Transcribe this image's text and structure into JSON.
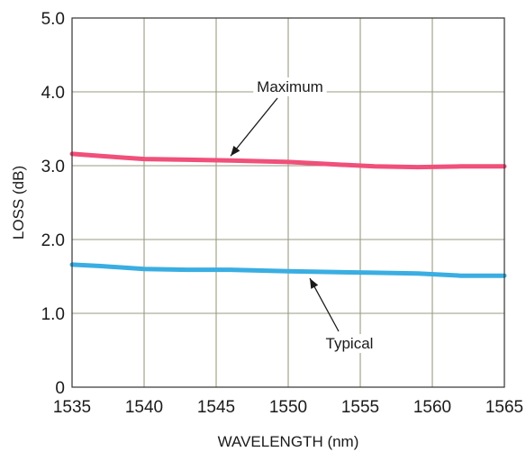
{
  "chart_data": {
    "type": "line",
    "title": "",
    "xlabel": "WAVELENGTH (nm)",
    "ylabel": "LOSS (dB)",
    "xlim": [
      1535,
      1565
    ],
    "ylim": [
      0,
      5
    ],
    "grid": true,
    "x_ticks": [
      1535,
      1540,
      1545,
      1550,
      1555,
      1560,
      1565
    ],
    "x_tick_labels": [
      "1535",
      "1540",
      "1545",
      "1550",
      "1555",
      "1560",
      "1565"
    ],
    "y_ticks": [
      0,
      1,
      2,
      3,
      4,
      5
    ],
    "y_tick_labels": [
      "0",
      "1.0",
      "2.0",
      "3.0",
      "4.0",
      "5.0"
    ],
    "series": [
      {
        "name": "Maximum",
        "color": "#f0507a",
        "x": [
          1535,
          1537,
          1540,
          1543,
          1546,
          1550,
          1553,
          1556,
          1559,
          1562,
          1565
        ],
        "values": [
          3.16,
          3.13,
          3.09,
          3.08,
          3.07,
          3.05,
          3.02,
          2.99,
          2.98,
          2.99,
          2.99
        ]
      },
      {
        "name": "Typical",
        "color": "#3aaee2",
        "x": [
          1535,
          1537,
          1540,
          1543,
          1546,
          1550,
          1553,
          1556,
          1559,
          1562,
          1565
        ],
        "values": [
          1.66,
          1.64,
          1.6,
          1.59,
          1.59,
          1.57,
          1.56,
          1.55,
          1.54,
          1.51,
          1.51
        ]
      }
    ],
    "annotations": [
      {
        "text": "Maximum",
        "series": "Maximum",
        "point_x": 1546,
        "point_y": 3.07
      },
      {
        "text": "Typical",
        "series": "Typical",
        "point_x": 1551.5,
        "point_y": 1.56
      }
    ],
    "colors": {
      "grid": "#9a9a80",
      "axis": "#333333"
    }
  }
}
